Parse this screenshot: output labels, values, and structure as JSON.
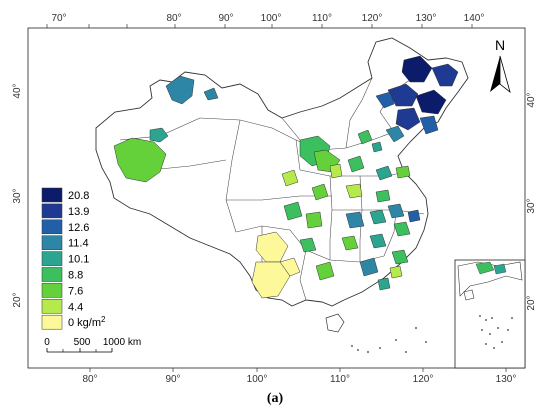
{
  "figure": {
    "caption": "(a)",
    "top_lon_ticks": [
      "70°",
      "80°",
      "90°",
      "100°",
      "110°",
      "120°",
      "130°",
      "140°"
    ],
    "bottom_lon_ticks": [
      "80°",
      "90°",
      "100°",
      "110°",
      "120°",
      "130°"
    ],
    "left_lat_ticks": [
      "40°",
      "30°",
      "20°"
    ],
    "right_lat_ticks": [
      "40°",
      "30°",
      "20°"
    ],
    "north_label": "N",
    "scale_bar": {
      "labels": [
        "0",
        "500",
        "1000 km"
      ]
    }
  },
  "legend": {
    "classes": [
      {
        "label": "20.8",
        "color": "#0d1b6b"
      },
      {
        "label": "13.9",
        "color": "#1f3a93"
      },
      {
        "label": "12.6",
        "color": "#2160a8"
      },
      {
        "label": "11.4",
        "color": "#2d86a6"
      },
      {
        "label": "10.1",
        "color": "#2ba58f"
      },
      {
        "label": "8.8",
        "color": "#3cbf5e"
      },
      {
        "label": "7.6",
        "color": "#64d13a"
      },
      {
        "label": "4.4",
        "color": "#b6e94c"
      },
      {
        "label": "0 kg/m",
        "sup": "2",
        "color": "#fdf99a"
      }
    ]
  },
  "map": {
    "outline_color": "#333333",
    "background_color": "#ffffff"
  }
}
